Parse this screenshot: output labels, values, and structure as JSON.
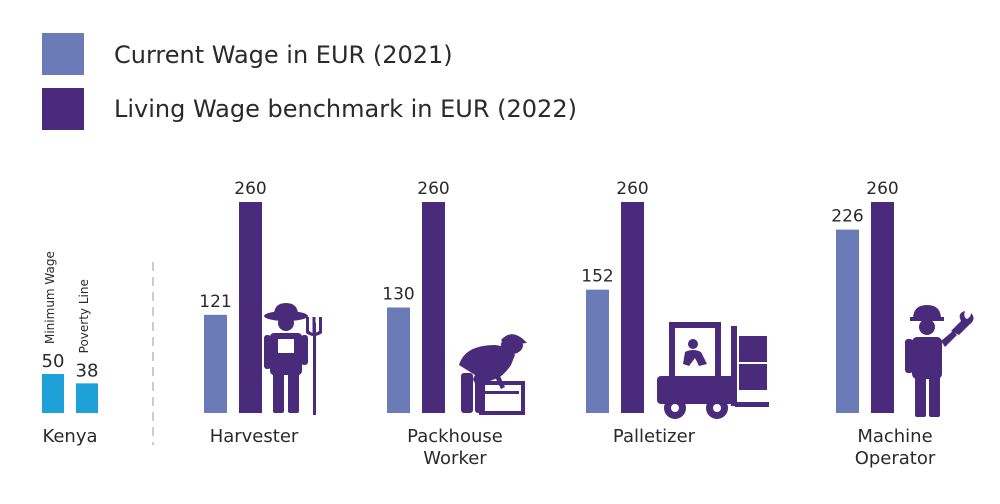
{
  "legend": {
    "current": "Current Wage in EUR (2021)",
    "living": "Living Wage benchmark in EUR (2022)"
  },
  "colors": {
    "current": "#6b7bb8",
    "living": "#4a2a7a",
    "kenya": "#1ea0d8",
    "icon": "#4a2a7a"
  },
  "chart_data": {
    "type": "bar",
    "categories": [
      "Harvester",
      "Packhouse Worker",
      "Palletizer",
      "Machine Operator"
    ],
    "category_lines": [
      [
        "Harvester"
      ],
      [
        "Packhouse",
        "Worker"
      ],
      [
        "Palletizer"
      ],
      [
        "Machine",
        "Operator"
      ]
    ],
    "series": [
      {
        "name": "Current Wage in EUR (2021)",
        "values": [
          121,
          130,
          152,
          226
        ]
      },
      {
        "name": "Living Wage benchmark in EUR (2022)",
        "values": [
          260,
          260,
          260,
          260
        ]
      }
    ],
    "reference": {
      "label": "Kenya",
      "items": [
        {
          "name": "Minimum Wage",
          "value": 50
        },
        {
          "name": "Poverty Line",
          "value": 38
        }
      ]
    },
    "icons": [
      "farmer-icon",
      "packhouse-worker-icon",
      "forklift-icon",
      "machine-operator-icon"
    ]
  }
}
